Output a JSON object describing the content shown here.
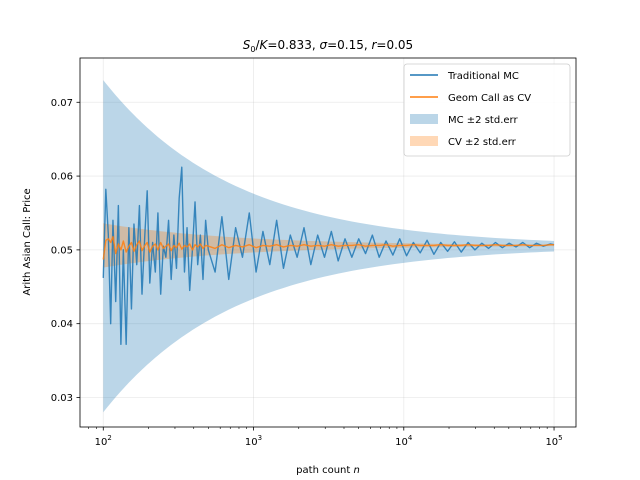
{
  "chart_data": {
    "type": "line",
    "title": {
      "var1": "S",
      "sub1": "0",
      "slash": "/",
      "var2": "K",
      "rest1": "=0.833, ",
      "sym": "σ",
      "rest2": "=0.15, ",
      "var3": "r",
      "rest3": "=0.05"
    },
    "xlabel": {
      "text": "path count ",
      "var": "n"
    },
    "ylabel": "Arith Asian Call: Price",
    "xscale": "log",
    "xlim": [
      70,
      140000
    ],
    "ylim": [
      0.026,
      0.076
    ],
    "grid": true,
    "legend_position": "top-right",
    "x_ticks": [
      {
        "value": 100,
        "base": "10",
        "exp": "2"
      },
      {
        "value": 1000,
        "base": "10",
        "exp": "3"
      },
      {
        "value": 10000,
        "base": "10",
        "exp": "4"
      },
      {
        "value": 100000,
        "base": "10",
        "exp": "5"
      }
    ],
    "y_ticks": [
      {
        "value": 0.03,
        "label": "0.03"
      },
      {
        "value": 0.04,
        "label": "0.04"
      },
      {
        "value": 0.05,
        "label": "0.05"
      },
      {
        "value": 0.06,
        "label": "0.06"
      },
      {
        "value": 0.07,
        "label": "0.07"
      }
    ],
    "x": [
      100,
      104,
      108,
      112,
      116,
      121,
      126,
      131,
      136,
      142,
      148,
      154,
      160,
      167,
      174,
      181,
      189,
      196,
      204,
      213,
      222,
      231,
      241,
      251,
      261,
      272,
      283,
      295,
      307,
      320,
      333,
      347,
      361,
      376,
      392,
      408,
      425,
      443,
      461,
      480,
      500,
      555,
      616,
      684,
      760,
      844,
      937,
      1040,
      1155,
      1283,
      1425,
      1582,
      1757,
      1951,
      2167,
      2406,
      2672,
      2967,
      3295,
      3659,
      4063,
      4512,
      5010,
      5564,
      6178,
      6861,
      7619,
      8461,
      9396,
      10434,
      11587,
      12867,
      14289,
      15868,
      17621,
      19568,
      21730,
      24131,
      26797,
      29758,
      33046,
      36697,
      40752,
      45255,
      50255,
      55808,
      61974,
      68822,
      76426,
      84871,
      94248,
      100000
    ],
    "series": [
      {
        "name": "Traditional MC",
        "color": "#1f77b4",
        "values": [
          0.0462,
          0.0582,
          0.0521,
          0.04,
          0.054,
          0.043,
          0.056,
          0.0372,
          0.05,
          0.0372,
          0.053,
          0.042,
          0.0535,
          0.048,
          0.056,
          0.044,
          0.052,
          0.058,
          0.0455,
          0.051,
          0.047,
          0.055,
          0.044,
          0.0505,
          0.049,
          0.054,
          0.046,
          0.052,
          0.0475,
          0.057,
          0.0612,
          0.047,
          0.053,
          0.0445,
          0.05,
          0.0565,
          0.048,
          0.052,
          0.046,
          0.054,
          0.05,
          0.047,
          0.0545,
          0.046,
          0.053,
          0.049,
          0.055,
          0.047,
          0.0525,
          0.048,
          0.054,
          0.0475,
          0.052,
          0.049,
          0.053,
          0.048,
          0.052,
          0.049,
          0.0525,
          0.0485,
          0.0515,
          0.049,
          0.0515,
          0.0495,
          0.052,
          0.049,
          0.0512,
          0.0493,
          0.0515,
          0.0492,
          0.051,
          0.0496,
          0.0513,
          0.0494,
          0.051,
          0.0498,
          0.0511,
          0.0497,
          0.051,
          0.05,
          0.0509,
          0.0502,
          0.051,
          0.0503,
          0.0509,
          0.0504,
          0.051,
          0.0503,
          0.0509,
          0.0505,
          0.0508,
          0.0507
        ]
      },
      {
        "name": "Geom Call as CV",
        "color": "#ff7f0e",
        "values": [
          0.0487,
          0.0513,
          0.0515,
          0.051,
          0.0518,
          0.0495,
          0.0508,
          0.05,
          0.0512,
          0.0497,
          0.0505,
          0.051,
          0.0498,
          0.0507,
          0.0512,
          0.0499,
          0.0506,
          0.051,
          0.0497,
          0.0505,
          0.0508,
          0.05,
          0.051,
          0.0502,
          0.0505,
          0.0508,
          0.0499,
          0.0506,
          0.0503,
          0.0509,
          0.0501,
          0.0506,
          0.0504,
          0.0508,
          0.05,
          0.0507,
          0.0504,
          0.0508,
          0.0502,
          0.0506,
          0.0505,
          0.0502,
          0.0507,
          0.0503,
          0.0506,
          0.0504,
          0.0507,
          0.0503,
          0.0506,
          0.0505,
          0.0507,
          0.0504,
          0.0506,
          0.0505,
          0.0507,
          0.0505,
          0.0506,
          0.0505,
          0.0507,
          0.0505,
          0.0506,
          0.0506,
          0.0507,
          0.0505,
          0.0506,
          0.0506,
          0.0507,
          0.0505,
          0.0506,
          0.0506,
          0.0507,
          0.0506,
          0.0506,
          0.0506,
          0.0507,
          0.0506,
          0.0506,
          0.0506,
          0.0507,
          0.0506,
          0.0506,
          0.0506,
          0.0507,
          0.0506,
          0.0506,
          0.0506,
          0.0507,
          0.0506,
          0.0506,
          0.0506,
          0.0507,
          0.0507
        ]
      }
    ],
    "bands": [
      {
        "name": "MC ±2 std.err",
        "color": "#1f77b4",
        "center": 0.0505,
        "halfwidth_at_100": 0.0225,
        "n0": 100
      },
      {
        "name": "CV ±2 std.err",
        "color": "#ff7f0e",
        "center": 0.0506,
        "halfwidth_at_100": 0.003,
        "n0": 100
      }
    ]
  }
}
